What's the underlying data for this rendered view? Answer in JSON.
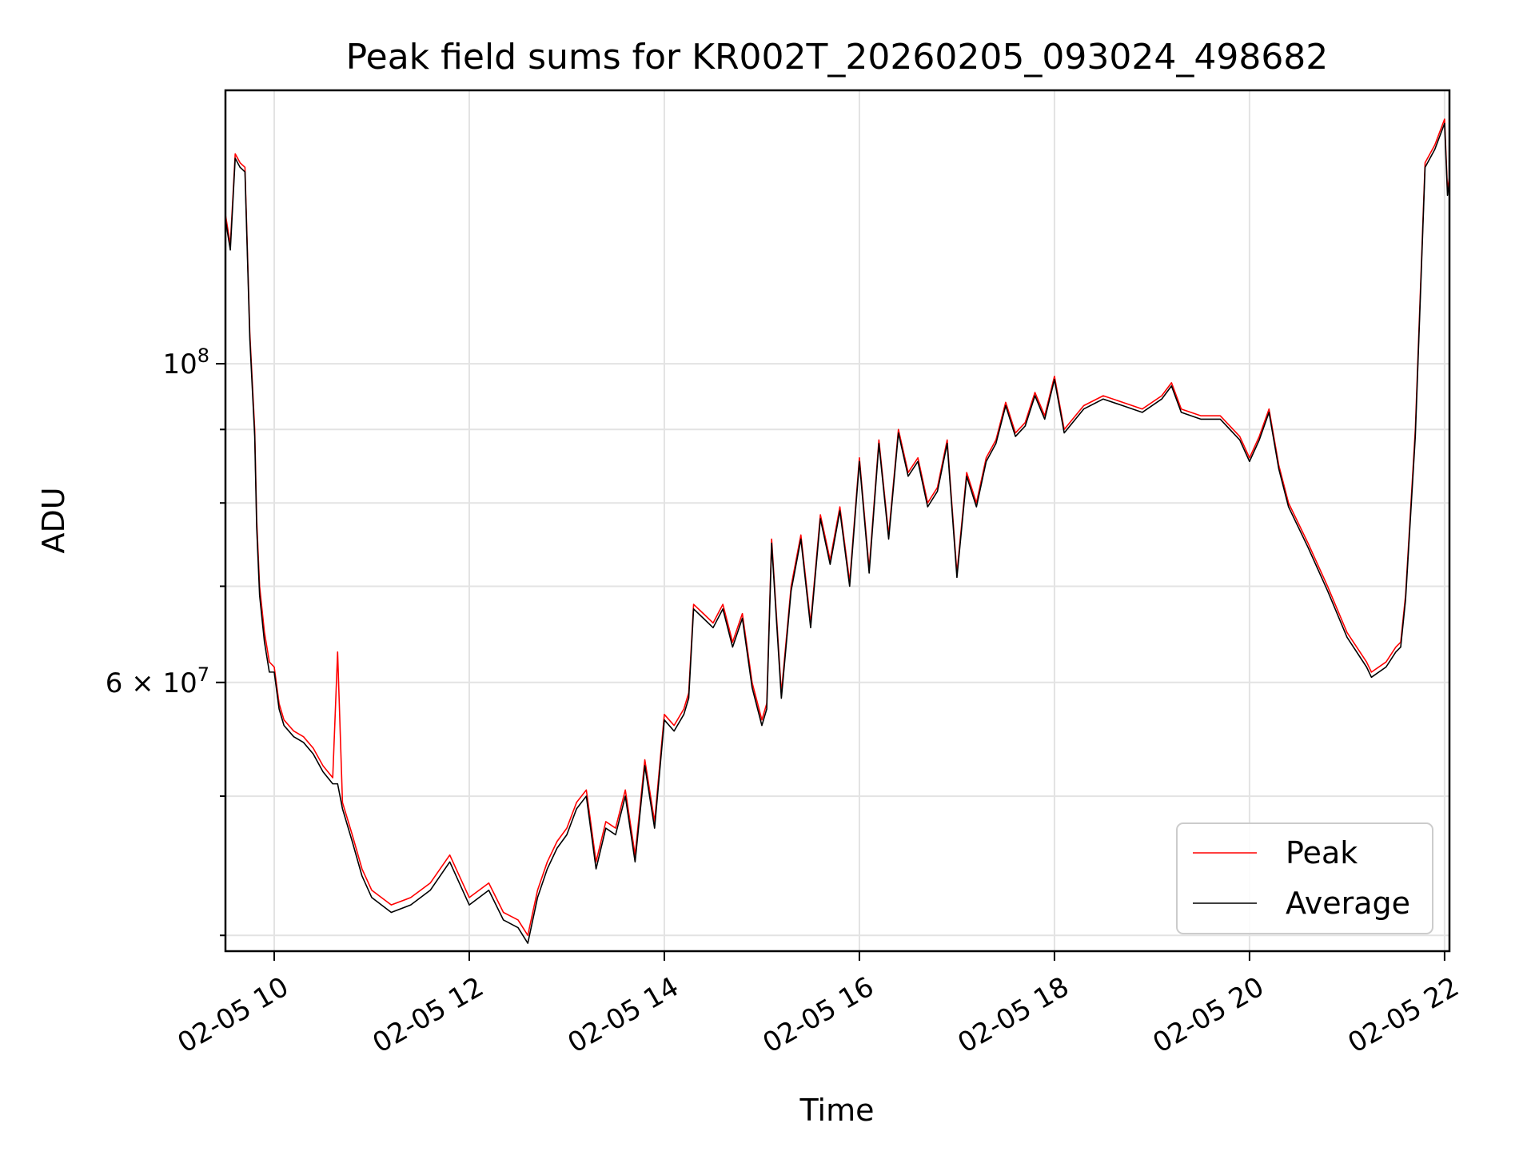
{
  "chart_data": {
    "type": "line",
    "title": "Peak field sums for KR002T_20260205_093024_498682",
    "xlabel": "Time",
    "ylabel": "ADU",
    "yscale": "log",
    "xlim": [
      9.5,
      22.05
    ],
    "ylim": [
      39000000,
      155000000
    ],
    "x_ticks": [
      {
        "value": 10,
        "label": "02-05 10"
      },
      {
        "value": 12,
        "label": "02-05 12"
      },
      {
        "value": 14,
        "label": "02-05 14"
      },
      {
        "value": 16,
        "label": "02-05 16"
      },
      {
        "value": 18,
        "label": "02-05 18"
      },
      {
        "value": 20,
        "label": "02-05 20"
      },
      {
        "value": 22,
        "label": "02-05 22"
      }
    ],
    "y_major_ticks": [
      {
        "value": 100000000,
        "mant": "",
        "base": "10",
        "exp": "8"
      },
      {
        "value": 60000000,
        "mant": "6 × ",
        "base": "10",
        "exp": "7"
      }
    ],
    "y_minor_ticks": [
      40000000,
      50000000,
      70000000,
      80000000,
      90000000
    ],
    "grid": true,
    "legend": {
      "position": "lower-right",
      "entries": [
        "Peak",
        "Average"
      ]
    },
    "series": [
      {
        "name": "Peak",
        "color": "#ff0000",
        "x": [
          9.5,
          9.55,
          9.6,
          9.65,
          9.7,
          9.75,
          9.8,
          9.82,
          9.85,
          9.9,
          9.95,
          10.0,
          10.05,
          10.1,
          10.2,
          10.3,
          10.4,
          10.5,
          10.6,
          10.65,
          10.7,
          10.8,
          10.9,
          11.0,
          11.2,
          11.4,
          11.6,
          11.8,
          12.0,
          12.2,
          12.35,
          12.5,
          12.6,
          12.7,
          12.8,
          12.9,
          13.0,
          13.1,
          13.2,
          13.3,
          13.4,
          13.5,
          13.6,
          13.7,
          13.8,
          13.9,
          14.0,
          14.1,
          14.2,
          14.25,
          14.3,
          14.4,
          14.5,
          14.6,
          14.7,
          14.8,
          14.9,
          15.0,
          15.05,
          15.1,
          15.2,
          15.3,
          15.4,
          15.5,
          15.6,
          15.7,
          15.8,
          15.9,
          16.0,
          16.1,
          16.2,
          16.3,
          16.4,
          16.5,
          16.6,
          16.7,
          16.8,
          16.9,
          17.0,
          17.1,
          17.2,
          17.3,
          17.4,
          17.5,
          17.6,
          17.7,
          17.8,
          17.9,
          18.0,
          18.1,
          18.3,
          18.5,
          18.7,
          18.9,
          19.1,
          19.2,
          19.3,
          19.5,
          19.7,
          19.9,
          20.0,
          20.1,
          20.2,
          20.3,
          20.4,
          20.6,
          20.8,
          21.0,
          21.2,
          21.25,
          21.4,
          21.5,
          21.55,
          21.6,
          21.7,
          21.8,
          21.9,
          22.0,
          22.03,
          22.05
        ],
        "values": [
          127000000,
          121000000,
          140000000,
          138000000,
          137000000,
          105000000,
          90000000,
          78000000,
          70000000,
          65000000,
          62000000,
          61500000,
          58000000,
          56500000,
          55500000,
          55000000,
          54000000,
          52500000,
          51500000,
          63000000,
          49500000,
          47000000,
          44500000,
          43000000,
          42000000,
          42500000,
          43500000,
          45500000,
          42500000,
          43500000,
          41500000,
          41000000,
          40000000,
          43000000,
          45000000,
          46500000,
          47500000,
          49500000,
          50500000,
          45000000,
          48000000,
          47500000,
          50500000,
          45500000,
          53000000,
          48000000,
          57000000,
          56000000,
          57500000,
          59000000,
          68000000,
          67000000,
          66000000,
          68000000,
          64000000,
          67000000,
          60000000,
          56500000,
          58000000,
          75500000,
          59000000,
          70000000,
          76000000,
          66000000,
          78500000,
          73000000,
          79500000,
          70500000,
          86000000,
          72000000,
          88500000,
          76000000,
          90000000,
          84000000,
          86000000,
          80000000,
          82000000,
          88500000,
          71500000,
          84000000,
          80000000,
          86000000,
          88500000,
          94000000,
          89500000,
          91000000,
          95500000,
          92000000,
          98000000,
          90000000,
          93500000,
          95000000,
          94000000,
          93000000,
          95000000,
          97000000,
          93000000,
          92000000,
          92000000,
          89000000,
          86000000,
          89000000,
          93000000,
          85000000,
          80000000,
          75000000,
          70000000,
          65000000,
          62000000,
          61000000,
          62000000,
          63500000,
          64000000,
          69000000,
          90000000,
          138000000,
          142000000,
          148000000,
          132000000,
          135000000
        ]
      },
      {
        "name": "Average",
        "color": "#000000",
        "x": [
          9.5,
          9.55,
          9.6,
          9.65,
          9.7,
          9.75,
          9.8,
          9.82,
          9.85,
          9.9,
          9.95,
          10.0,
          10.05,
          10.1,
          10.2,
          10.3,
          10.4,
          10.5,
          10.6,
          10.65,
          10.7,
          10.8,
          10.9,
          11.0,
          11.2,
          11.4,
          11.6,
          11.8,
          12.0,
          12.2,
          12.35,
          12.5,
          12.6,
          12.7,
          12.8,
          12.9,
          13.0,
          13.1,
          13.2,
          13.3,
          13.4,
          13.5,
          13.6,
          13.7,
          13.8,
          13.9,
          14.0,
          14.1,
          14.2,
          14.25,
          14.3,
          14.4,
          14.5,
          14.6,
          14.7,
          14.8,
          14.9,
          15.0,
          15.05,
          15.1,
          15.2,
          15.3,
          15.4,
          15.5,
          15.6,
          15.7,
          15.8,
          15.9,
          16.0,
          16.1,
          16.2,
          16.3,
          16.4,
          16.5,
          16.6,
          16.7,
          16.8,
          16.9,
          17.0,
          17.1,
          17.2,
          17.3,
          17.4,
          17.5,
          17.6,
          17.7,
          17.8,
          17.9,
          18.0,
          18.1,
          18.3,
          18.5,
          18.7,
          18.9,
          19.1,
          19.2,
          19.3,
          19.5,
          19.7,
          19.9,
          20.0,
          20.1,
          20.2,
          20.3,
          20.4,
          20.6,
          20.8,
          21.0,
          21.2,
          21.25,
          21.4,
          21.5,
          21.55,
          21.6,
          21.7,
          21.8,
          21.9,
          22.0,
          22.03,
          22.05
        ],
        "values": [
          126000000,
          120000000,
          139000000,
          137000000,
          136000000,
          104000000,
          89000000,
          77000000,
          69000000,
          64000000,
          61000000,
          61000000,
          57500000,
          56000000,
          55000000,
          54500000,
          53500000,
          52000000,
          51000000,
          51000000,
          49000000,
          46500000,
          44000000,
          42500000,
          41500000,
          42000000,
          43000000,
          45000000,
          42000000,
          43000000,
          41000000,
          40500000,
          39500000,
          42500000,
          44500000,
          46000000,
          47000000,
          49000000,
          50000000,
          44500000,
          47500000,
          47000000,
          50000000,
          45000000,
          52500000,
          47500000,
          56500000,
          55500000,
          57000000,
          58500000,
          67500000,
          66500000,
          65500000,
          67500000,
          63500000,
          66500000,
          59500000,
          56000000,
          57500000,
          75000000,
          58500000,
          69500000,
          75500000,
          65500000,
          78000000,
          72500000,
          79000000,
          70000000,
          85500000,
          71500000,
          88000000,
          75500000,
          89500000,
          83500000,
          85500000,
          79500000,
          81500000,
          88000000,
          71000000,
          83500000,
          79500000,
          85500000,
          88000000,
          93500000,
          89000000,
          90500000,
          95000000,
          91500000,
          97500000,
          89500000,
          93000000,
          94500000,
          93500000,
          92500000,
          94500000,
          96500000,
          92500000,
          91500000,
          91500000,
          88500000,
          85500000,
          88500000,
          92500000,
          84500000,
          79500000,
          74500000,
          69500000,
          64500000,
          61500000,
          60500000,
          61500000,
          63000000,
          63500000,
          68500000,
          89000000,
          137000000,
          141000000,
          147000000,
          131000000,
          134000000
        ]
      }
    ]
  }
}
